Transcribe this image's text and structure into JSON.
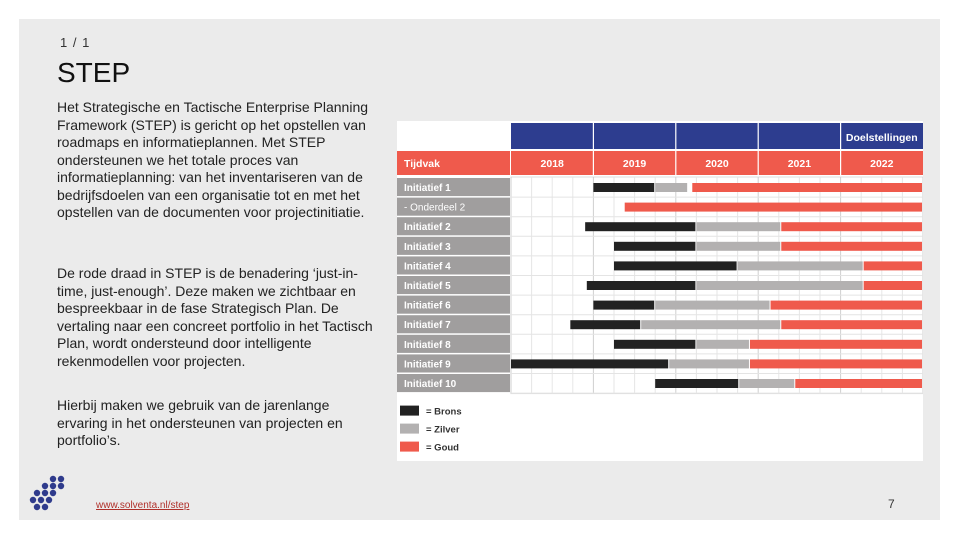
{
  "slide": {
    "page_counter": "1 / 1",
    "title": "STEP",
    "paragraphs": [
      "Het Strategische en Tactische Enterprise Planning Framework (STEP) is gericht op het opstellen van roadmaps en informatieplannen. Met STEP ondersteunen we het totale proces van informatieplanning: van het inventariseren van de bedrijfsdoelen van een organisatie tot en met het opstellen van de documenten voor projectinitiatie.",
      "De rode draad in STEP is de benadering ‘just-in-time, just-enough’. Deze maken we zichtbaar en bespreekbaar in de fase Strategisch Plan. De vertaling naar een concreet portfolio in het Tactisch Plan, wordt ondersteund door intelligente rekenmodellen voor projecten.",
      "Hierbij maken we gebruik van de jarenlange ervaring in het ondersteunen van projecten en portfolio’s."
    ],
    "footer_link": "www.solventa.nl/step",
    "page_number": "7"
  },
  "colors": {
    "navy": "#2d3d8f",
    "red": "#ef5a4c",
    "brons": "#222222",
    "zilver": "#b3b1b1",
    "label_bg": "#a09e9e",
    "logo": "#2f3b8c"
  },
  "chart_data": {
    "type": "gantt",
    "header_goal": "Doelstellingen",
    "row_header": "Tijdvak",
    "years": [
      "2018",
      "2019",
      "2020",
      "2021",
      "2022"
    ],
    "rows": [
      {
        "label": "Initiatief  1",
        "segments": [
          {
            "level": "brons",
            "start": 2018.5,
            "end": 2019.25
          },
          {
            "level": "zilver",
            "start": 2019.25,
            "end": 2019.65
          },
          {
            "level": "goud",
            "start": 2019.7,
            "end": 2022.5
          }
        ]
      },
      {
        "label": "- Onderdeel 2",
        "sub": true,
        "segments": [
          {
            "level": "goud",
            "start": 2018.88,
            "end": 2022.5
          }
        ]
      },
      {
        "label": "Initiatief  2",
        "segments": [
          {
            "level": "brons",
            "start": 2018.4,
            "end": 2019.75
          },
          {
            "level": "zilver",
            "start": 2019.75,
            "end": 2020.78
          },
          {
            "level": "goud",
            "start": 2020.78,
            "end": 2022.5
          }
        ]
      },
      {
        "label": "Initiatief  3",
        "segments": [
          {
            "level": "brons",
            "start": 2018.75,
            "end": 2019.75
          },
          {
            "level": "zilver",
            "start": 2019.75,
            "end": 2020.78
          },
          {
            "level": "goud",
            "start": 2020.78,
            "end": 2022.5
          }
        ]
      },
      {
        "label": "Initiatief  4",
        "segments": [
          {
            "level": "brons",
            "start": 2018.75,
            "end": 2020.25
          },
          {
            "level": "zilver",
            "start": 2020.25,
            "end": 2021.78
          },
          {
            "level": "goud",
            "start": 2021.78,
            "end": 2022.5
          }
        ]
      },
      {
        "label": "Initiatief  5",
        "segments": [
          {
            "level": "brons",
            "start": 2018.42,
            "end": 2019.75
          },
          {
            "level": "zilver",
            "start": 2019.75,
            "end": 2021.78
          },
          {
            "level": "goud",
            "start": 2021.78,
            "end": 2022.5
          }
        ]
      },
      {
        "label": "Initiatief  6",
        "segments": [
          {
            "level": "brons",
            "start": 2018.5,
            "end": 2019.25
          },
          {
            "level": "zilver",
            "start": 2019.25,
            "end": 2020.65
          },
          {
            "level": "goud",
            "start": 2020.65,
            "end": 2022.5
          }
        ]
      },
      {
        "label": "Initiatief  7",
        "segments": [
          {
            "level": "brons",
            "start": 2018.22,
            "end": 2019.08
          },
          {
            "level": "zilver",
            "start": 2019.08,
            "end": 2020.78
          },
          {
            "level": "goud",
            "start": 2020.78,
            "end": 2022.5
          }
        ]
      },
      {
        "label": "Initiatief  8",
        "segments": [
          {
            "level": "brons",
            "start": 2018.75,
            "end": 2019.75
          },
          {
            "level": "zilver",
            "start": 2019.75,
            "end": 2020.4
          },
          {
            "level": "goud",
            "start": 2020.4,
            "end": 2022.5
          }
        ]
      },
      {
        "label": "Initiatief  9",
        "segments": [
          {
            "level": "brons",
            "start": 2017.5,
            "end": 2019.42
          },
          {
            "level": "zilver",
            "start": 2019.42,
            "end": 2020.4
          },
          {
            "level": "goud",
            "start": 2020.4,
            "end": 2022.5
          }
        ]
      },
      {
        "label": "Initiatief 10",
        "segments": [
          {
            "level": "brons",
            "start": 2019.25,
            "end": 2020.27
          },
          {
            "level": "zilver",
            "start": 2020.27,
            "end": 2020.95
          },
          {
            "level": "goud",
            "start": 2020.95,
            "end": 2022.5
          }
        ]
      }
    ],
    "legend": [
      {
        "level": "brons",
        "label": "= Brons"
      },
      {
        "level": "zilver",
        "label": "= Zilver"
      },
      {
        "level": "goud",
        "label": "= Goud"
      }
    ]
  }
}
